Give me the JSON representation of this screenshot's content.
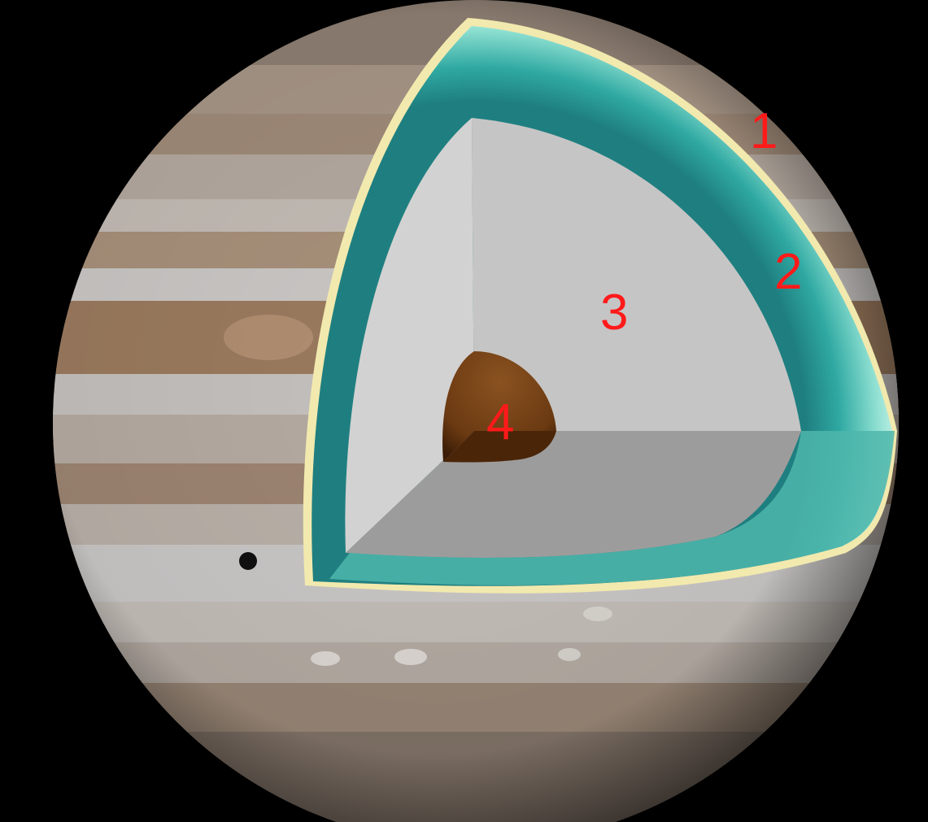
{
  "labels": {
    "one": "1",
    "two": "2",
    "three": "3",
    "four": "4"
  },
  "colors": {
    "background": "#000000",
    "label": "#ff1a1a",
    "outer_layer": "#f0e6a8",
    "second_layer": "#3fb7ad",
    "third_layer": "#c9c9c9",
    "core": "#6b3b12"
  }
}
